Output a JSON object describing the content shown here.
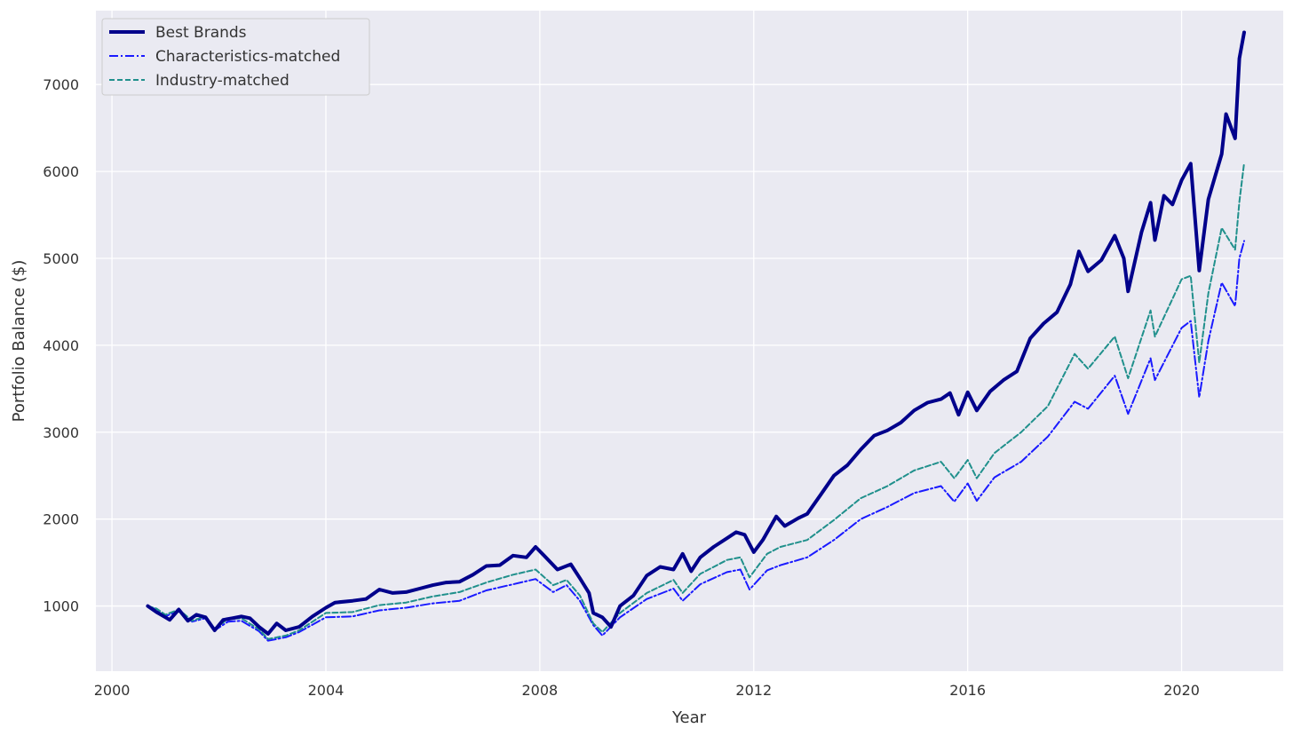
{
  "chart_data": {
    "type": "line",
    "title": "",
    "xlabel": "Year",
    "ylabel": "Portfolio Balance ($)",
    "xlim": [
      1999.7,
      2021.9
    ],
    "ylim": [
      250,
      7850
    ],
    "x_ticks": [
      2000,
      2004,
      2008,
      2012,
      2016,
      2020
    ],
    "y_ticks": [
      1000,
      2000,
      3000,
      4000,
      5000,
      6000,
      7000
    ],
    "x_tick_labels": [
      "2000",
      "2004",
      "2008",
      "2012",
      "2016",
      "2020"
    ],
    "y_tick_labels": [
      "1000",
      "2000",
      "3000",
      "4000",
      "5000",
      "6000",
      "7000"
    ],
    "grid": true,
    "background": "#eaeaf2",
    "legend_position": "top-left",
    "series": [
      {
        "name": "Best Brands",
        "color": "#00008b",
        "style": "solid",
        "points": [
          [
            2000.67,
            1000
          ],
          [
            2000.83,
            930
          ],
          [
            2001.0,
            870
          ],
          [
            2001.08,
            840
          ],
          [
            2001.25,
            960
          ],
          [
            2001.42,
            830
          ],
          [
            2001.58,
            900
          ],
          [
            2001.75,
            870
          ],
          [
            2001.92,
            720
          ],
          [
            2002.08,
            840
          ],
          [
            2002.25,
            860
          ],
          [
            2002.42,
            880
          ],
          [
            2002.58,
            860
          ],
          [
            2002.75,
            760
          ],
          [
            2002.92,
            680
          ],
          [
            2003.08,
            800
          ],
          [
            2003.25,
            720
          ],
          [
            2003.5,
            760
          ],
          [
            2003.75,
            880
          ],
          [
            2004.0,
            980
          ],
          [
            2004.17,
            1040
          ],
          [
            2004.5,
            1060
          ],
          [
            2004.75,
            1080
          ],
          [
            2005.0,
            1190
          ],
          [
            2005.25,
            1150
          ],
          [
            2005.5,
            1160
          ],
          [
            2005.75,
            1200
          ],
          [
            2006.0,
            1240
          ],
          [
            2006.25,
            1270
          ],
          [
            2006.5,
            1280
          ],
          [
            2006.75,
            1360
          ],
          [
            2007.0,
            1460
          ],
          [
            2007.25,
            1470
          ],
          [
            2007.5,
            1580
          ],
          [
            2007.75,
            1560
          ],
          [
            2007.92,
            1680
          ],
          [
            2008.08,
            1580
          ],
          [
            2008.33,
            1420
          ],
          [
            2008.58,
            1480
          ],
          [
            2008.75,
            1320
          ],
          [
            2008.92,
            1150
          ],
          [
            2009.0,
            920
          ],
          [
            2009.17,
            870
          ],
          [
            2009.33,
            760
          ],
          [
            2009.5,
            1000
          ],
          [
            2009.75,
            1120
          ],
          [
            2010.0,
            1350
          ],
          [
            2010.25,
            1450
          ],
          [
            2010.5,
            1420
          ],
          [
            2010.67,
            1600
          ],
          [
            2010.83,
            1400
          ],
          [
            2011.0,
            1560
          ],
          [
            2011.25,
            1680
          ],
          [
            2011.5,
            1780
          ],
          [
            2011.67,
            1850
          ],
          [
            2011.83,
            1820
          ],
          [
            2012.0,
            1620
          ],
          [
            2012.17,
            1760
          ],
          [
            2012.42,
            2030
          ],
          [
            2012.58,
            1920
          ],
          [
            2012.83,
            2010
          ],
          [
            2013.0,
            2060
          ],
          [
            2013.25,
            2280
          ],
          [
            2013.5,
            2500
          ],
          [
            2013.75,
            2620
          ],
          [
            2014.0,
            2800
          ],
          [
            2014.25,
            2960
          ],
          [
            2014.5,
            3020
          ],
          [
            2014.75,
            3110
          ],
          [
            2015.0,
            3250
          ],
          [
            2015.25,
            3340
          ],
          [
            2015.5,
            3380
          ],
          [
            2015.67,
            3450
          ],
          [
            2015.83,
            3200
          ],
          [
            2016.0,
            3460
          ],
          [
            2016.17,
            3250
          ],
          [
            2016.42,
            3470
          ],
          [
            2016.67,
            3600
          ],
          [
            2016.92,
            3700
          ],
          [
            2017.17,
            4080
          ],
          [
            2017.42,
            4250
          ],
          [
            2017.67,
            4380
          ],
          [
            2017.92,
            4700
          ],
          [
            2018.08,
            5080
          ],
          [
            2018.25,
            4850
          ],
          [
            2018.5,
            4980
          ],
          [
            2018.75,
            5260
          ],
          [
            2018.92,
            5000
          ],
          [
            2019.0,
            4620
          ],
          [
            2019.25,
            5300
          ],
          [
            2019.42,
            5640
          ],
          [
            2019.5,
            5210
          ],
          [
            2019.67,
            5720
          ],
          [
            2019.83,
            5620
          ],
          [
            2020.0,
            5900
          ],
          [
            2020.17,
            6090
          ],
          [
            2020.33,
            4860
          ],
          [
            2020.5,
            5680
          ],
          [
            2020.75,
            6200
          ],
          [
            2020.83,
            6660
          ],
          [
            2021.0,
            6380
          ],
          [
            2021.08,
            7300
          ],
          [
            2021.17,
            7600
          ]
        ]
      },
      {
        "name": "Characteristics-matched",
        "color": "#1a1aff",
        "style": "dashdot",
        "points": [
          [
            2000.67,
            1000
          ],
          [
            2000.83,
            960
          ],
          [
            2001.0,
            880
          ],
          [
            2001.25,
            950
          ],
          [
            2001.5,
            820
          ],
          [
            2001.75,
            860
          ],
          [
            2001.92,
            720
          ],
          [
            2002.17,
            820
          ],
          [
            2002.42,
            830
          ],
          [
            2002.75,
            710
          ],
          [
            2002.92,
            600
          ],
          [
            2003.25,
            640
          ],
          [
            2003.5,
            700
          ],
          [
            2004.0,
            870
          ],
          [
            2004.5,
            880
          ],
          [
            2005.0,
            950
          ],
          [
            2005.5,
            980
          ],
          [
            2006.0,
            1030
          ],
          [
            2006.5,
            1060
          ],
          [
            2007.0,
            1180
          ],
          [
            2007.5,
            1250
          ],
          [
            2007.92,
            1310
          ],
          [
            2008.25,
            1160
          ],
          [
            2008.5,
            1240
          ],
          [
            2008.75,
            1060
          ],
          [
            2009.0,
            780
          ],
          [
            2009.17,
            660
          ],
          [
            2009.5,
            870
          ],
          [
            2010.0,
            1080
          ],
          [
            2010.5,
            1200
          ],
          [
            2010.67,
            1060
          ],
          [
            2011.0,
            1250
          ],
          [
            2011.5,
            1390
          ],
          [
            2011.75,
            1420
          ],
          [
            2011.92,
            1190
          ],
          [
            2012.25,
            1410
          ],
          [
            2012.5,
            1470
          ],
          [
            2013.0,
            1560
          ],
          [
            2013.5,
            1760
          ],
          [
            2014.0,
            2000
          ],
          [
            2014.5,
            2140
          ],
          [
            2015.0,
            2300
          ],
          [
            2015.5,
            2380
          ],
          [
            2015.75,
            2200
          ],
          [
            2016.0,
            2410
          ],
          [
            2016.17,
            2210
          ],
          [
            2016.5,
            2480
          ],
          [
            2017.0,
            2660
          ],
          [
            2017.5,
            2950
          ],
          [
            2018.0,
            3350
          ],
          [
            2018.25,
            3270
          ],
          [
            2018.75,
            3650
          ],
          [
            2019.0,
            3210
          ],
          [
            2019.42,
            3850
          ],
          [
            2019.5,
            3600
          ],
          [
            2020.0,
            4200
          ],
          [
            2020.17,
            4280
          ],
          [
            2020.33,
            3400
          ],
          [
            2020.5,
            4050
          ],
          [
            2020.75,
            4720
          ],
          [
            2021.0,
            4450
          ],
          [
            2021.08,
            5000
          ],
          [
            2021.17,
            5200
          ]
        ]
      },
      {
        "name": "Industry-matched",
        "color": "#20908c",
        "style": "dashed",
        "points": [
          [
            2000.67,
            1000
          ],
          [
            2000.83,
            970
          ],
          [
            2001.0,
            900
          ],
          [
            2001.25,
            960
          ],
          [
            2001.5,
            830
          ],
          [
            2001.75,
            880
          ],
          [
            2001.92,
            740
          ],
          [
            2002.17,
            850
          ],
          [
            2002.42,
            860
          ],
          [
            2002.75,
            730
          ],
          [
            2002.92,
            620
          ],
          [
            2003.25,
            660
          ],
          [
            2003.5,
            720
          ],
          [
            2004.0,
            920
          ],
          [
            2004.5,
            930
          ],
          [
            2005.0,
            1010
          ],
          [
            2005.5,
            1040
          ],
          [
            2006.0,
            1110
          ],
          [
            2006.5,
            1160
          ],
          [
            2007.0,
            1270
          ],
          [
            2007.5,
            1360
          ],
          [
            2007.92,
            1420
          ],
          [
            2008.25,
            1240
          ],
          [
            2008.5,
            1300
          ],
          [
            2008.75,
            1120
          ],
          [
            2009.0,
            800
          ],
          [
            2009.17,
            700
          ],
          [
            2009.5,
            920
          ],
          [
            2010.0,
            1150
          ],
          [
            2010.5,
            1300
          ],
          [
            2010.67,
            1150
          ],
          [
            2011.0,
            1370
          ],
          [
            2011.5,
            1530
          ],
          [
            2011.75,
            1560
          ],
          [
            2011.92,
            1330
          ],
          [
            2012.25,
            1600
          ],
          [
            2012.5,
            1680
          ],
          [
            2013.0,
            1760
          ],
          [
            2013.5,
            1990
          ],
          [
            2014.0,
            2240
          ],
          [
            2014.5,
            2380
          ],
          [
            2015.0,
            2560
          ],
          [
            2015.5,
            2660
          ],
          [
            2015.75,
            2470
          ],
          [
            2016.0,
            2680
          ],
          [
            2016.17,
            2470
          ],
          [
            2016.5,
            2760
          ],
          [
            2017.0,
            3000
          ],
          [
            2017.5,
            3300
          ],
          [
            2018.0,
            3900
          ],
          [
            2018.25,
            3730
          ],
          [
            2018.75,
            4100
          ],
          [
            2019.0,
            3620
          ],
          [
            2019.42,
            4400
          ],
          [
            2019.5,
            4100
          ],
          [
            2020.0,
            4760
          ],
          [
            2020.17,
            4800
          ],
          [
            2020.33,
            3800
          ],
          [
            2020.5,
            4600
          ],
          [
            2020.75,
            5350
          ],
          [
            2021.0,
            5100
          ],
          [
            2021.08,
            5650
          ],
          [
            2021.17,
            6100
          ]
        ]
      }
    ]
  }
}
